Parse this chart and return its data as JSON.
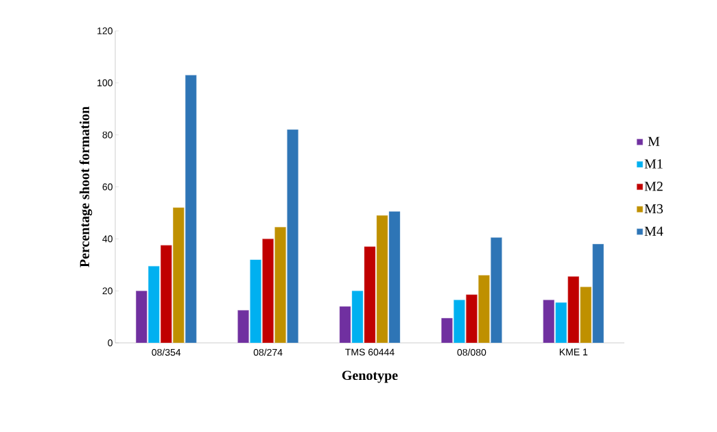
{
  "chart_data": {
    "type": "bar",
    "xlabel": "Genotype",
    "ylabel": "Percentage shoot formation",
    "categories": [
      "08/354",
      "08/274",
      "TMS 60444",
      "08/080",
      "KME 1"
    ],
    "series": [
      {
        "name": "M",
        "color": "#7030a0",
        "values": [
          20,
          12.5,
          14,
          9.5,
          16.5
        ]
      },
      {
        "name": "M1",
        "color": "#00b0f0",
        "values": [
          29.5,
          32,
          20,
          16.5,
          15.5
        ]
      },
      {
        "name": "M2",
        "color": "#c00000",
        "values": [
          37.5,
          40,
          37,
          18.5,
          25.5
        ]
      },
      {
        "name": "M3",
        "color": "#bf9000",
        "values": [
          52,
          44.5,
          49,
          26,
          21.5
        ]
      },
      {
        "name": "M4",
        "color": "#2e75b6",
        "values": [
          103,
          82,
          50.5,
          40.5,
          38
        ]
      }
    ],
    "ylim": [
      0,
      120
    ],
    "yticks": [
      0,
      20,
      40,
      60,
      80,
      100,
      120
    ],
    "grid": false,
    "legend": "right"
  }
}
